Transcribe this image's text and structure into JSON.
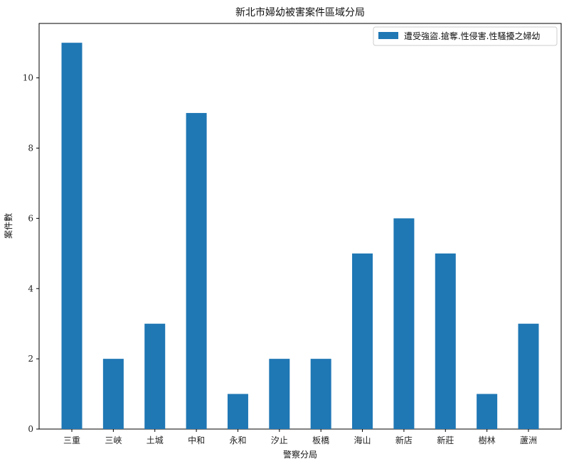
{
  "chart_data": {
    "type": "bar",
    "title": "新北市婦幼被害案件區域分局",
    "xlabel": "警察分局",
    "ylabel": "案件數",
    "categories": [
      "三重",
      "三峽",
      "土城",
      "中和",
      "永和",
      "汐止",
      "板橋",
      "海山",
      "新店",
      "新莊",
      "樹林",
      "蘆洲"
    ],
    "series": [
      {
        "name": "遭受強盜.搶奪.性侵害.性騷擾之婦幼",
        "values": [
          11,
          2,
          3,
          9,
          1,
          2,
          2,
          5,
          6,
          5,
          1,
          3
        ],
        "color": "#1f77b4"
      }
    ],
    "ylim": [
      0,
      11.55
    ],
    "yticks": [
      0,
      2,
      4,
      6,
      8,
      10
    ],
    "legend_position": "top-right",
    "grid": false
  }
}
